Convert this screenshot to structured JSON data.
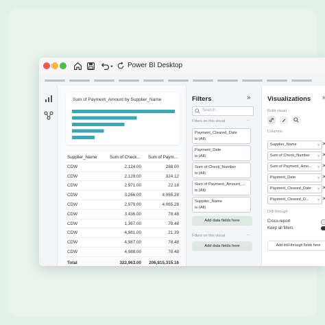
{
  "app": {
    "title": "Power BI Desktop"
  },
  "chart": {
    "title": "Sum of Payment_Amount by Supplier_Name",
    "bar_color": "#3aa7b6",
    "chart_data": {
      "type": "bar",
      "orientation": "horizontal",
      "title": "Sum of Payment_Amount by Supplier_Name",
      "values": [
        1.0,
        0.63,
        0.51,
        0.31,
        0.22
      ]
    }
  },
  "table": {
    "headers": [
      "Supplier_Name",
      "Sum of Check...",
      "Sum of Paym..."
    ],
    "rows": [
      [
        "CDW",
        "2,124.00",
        "288.00"
      ],
      [
        "CDW",
        "2,129.00",
        "324.12"
      ],
      [
        "CDW",
        "2,971.00",
        "22.18"
      ],
      [
        "CDW",
        "3,266.00",
        "4,065.28"
      ],
      [
        "CDW",
        "2,979.00",
        "4,065.28"
      ],
      [
        "CDW",
        "3,436.00",
        "78.48"
      ],
      [
        "CDW",
        "1,367.00",
        "78.48"
      ],
      [
        "CDW",
        "4,981.00",
        "21.39"
      ],
      [
        "CDW",
        "4,987.00",
        "78.48"
      ],
      [
        "CDW",
        "4,988.00",
        "78.48"
      ]
    ],
    "total": [
      "Total",
      "322,963.00",
      "206,815,315.16"
    ]
  },
  "filters": {
    "title": "Filters",
    "collapse": "»",
    "search_placeholder": "Search",
    "on_visual_label": "Filters on this visual",
    "on_visual_dots": "...",
    "items": [
      {
        "name": "Payment_Cleared_Date",
        "state": "is (All)"
      },
      {
        "name": "Payment_Date",
        "state": "is (All)"
      },
      {
        "name": "Sum of Check_Number",
        "state": "is (All)"
      },
      {
        "name": "Sum of Payment_Amount_...",
        "state": "is (All)"
      },
      {
        "name": "Supplier_Name",
        "state": "is (All)"
      }
    ],
    "add_label": "Add data fields here",
    "on_page_label": "Filters on this visual",
    "on_page_dots": "...",
    "add_label_2": "Add data fields here"
  },
  "viz": {
    "title": "Visualizations",
    "collapse": "»",
    "build_label": "Build visual",
    "columns_label": "Columns",
    "columns": [
      "Supplier_Name",
      "Sum of Check_Number",
      "Sum of Payment_Amo...",
      "Payment_Date",
      "Payment_Cleared_Date",
      "Payment_Cleared_D..."
    ],
    "drill_label": "Drill through",
    "cross_report": "Cross-report",
    "keep_filters": "Keep all filters",
    "drill_button": "Add drill-through fields here"
  }
}
